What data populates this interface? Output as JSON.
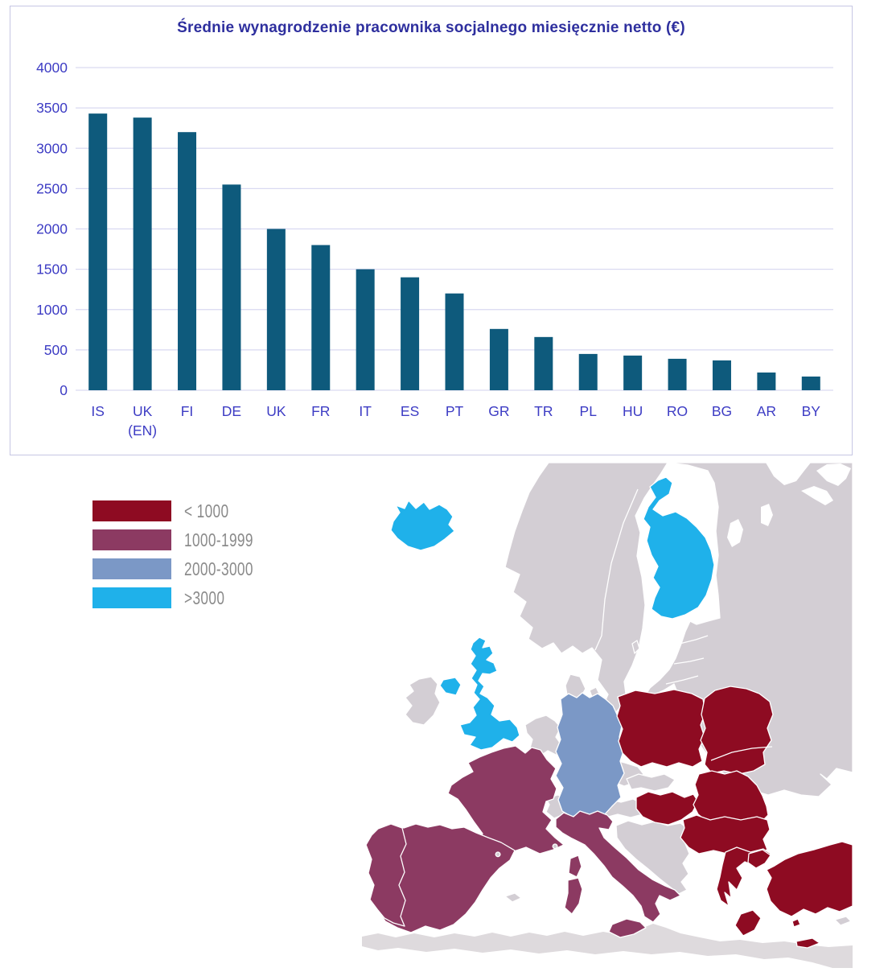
{
  "chart_data": {
    "type": "bar",
    "title": "Średnie wynagrodzenie pracownika socjalnego miesięcznie netto (€)",
    "categories": [
      "IS",
      "UK (EN)",
      "FI",
      "DE",
      "UK",
      "FR",
      "IT",
      "ES",
      "PT",
      "GR",
      "TR",
      "PL",
      "HU",
      "RO",
      "BG",
      "AR",
      "BY"
    ],
    "values": [
      3430,
      3380,
      3200,
      2550,
      2000,
      1800,
      1500,
      1400,
      1200,
      760,
      660,
      450,
      430,
      390,
      370,
      220,
      170
    ],
    "xlabel": "",
    "ylabel": "",
    "ylim": [
      0,
      4000
    ],
    "yticks": [
      0,
      500,
      1000,
      1500,
      2000,
      2500,
      3000,
      3500,
      4000
    ],
    "grid": true,
    "legend_position": "none",
    "bar_color": "#0e5a7c",
    "axis_text_color": "#3d3cc4",
    "title_color": "#2e2f9e",
    "gridline_color": "#d9d9f1",
    "panel_border_color": "#c6c6e4"
  },
  "legend": {
    "text_color": "#8a8a8a",
    "items": [
      {
        "label": "< 1000",
        "color": "#8e0b22",
        "category": "lt1000"
      },
      {
        "label": "1000-1999",
        "color": "#8c3a62",
        "category": "1000-1999"
      },
      {
        "label": "2000-3000",
        "color": "#7b98c6",
        "category": "2000-3000"
      },
      {
        "label": ">3000",
        "color": "#1fb1ea",
        "category": "gt3000"
      }
    ]
  },
  "map": {
    "sea_color": "#ffffff",
    "nodata_color": "#d3ced4",
    "africa_color": "#dedadd",
    "border_color": "#ffffff",
    "countries": [
      {
        "id": "eastern-europe-russia",
        "category": "none"
      },
      {
        "id": "white-sea",
        "category": "water"
      },
      {
        "id": "lake-ladoga",
        "category": "water"
      },
      {
        "id": "lake-onega",
        "category": "water"
      },
      {
        "id": "scandinavia",
        "category": "none"
      },
      {
        "id": "gotland",
        "category": "none"
      },
      {
        "id": "denmark",
        "category": "none"
      },
      {
        "id": "ireland",
        "category": "none"
      },
      {
        "id": "benelux",
        "category": "none"
      },
      {
        "id": "czechia",
        "category": "none"
      },
      {
        "id": "slovakia",
        "category": "none"
      },
      {
        "id": "switzerland",
        "category": "none"
      },
      {
        "id": "austria",
        "category": "none"
      },
      {
        "id": "balkans",
        "category": "none"
      },
      {
        "id": "africa",
        "category": "africa"
      },
      {
        "id": "finland",
        "category": "gt3000"
      },
      {
        "id": "iceland",
        "category": "gt3000"
      },
      {
        "id": "united-kingdom",
        "category": "gt3000"
      },
      {
        "id": "germany",
        "category": "2000-3000"
      },
      {
        "id": "france",
        "category": "1000-1999"
      },
      {
        "id": "corsica",
        "category": "1000-1999"
      },
      {
        "id": "spain",
        "category": "1000-1999"
      },
      {
        "id": "portugal",
        "category": "1000-1999"
      },
      {
        "id": "italy",
        "category": "1000-1999"
      },
      {
        "id": "poland",
        "category": "lt1000"
      },
      {
        "id": "belarus",
        "category": "lt1000"
      },
      {
        "id": "hungary",
        "category": "lt1000"
      },
      {
        "id": "romania",
        "category": "lt1000"
      },
      {
        "id": "bulgaria",
        "category": "lt1000"
      },
      {
        "id": "greece",
        "category": "lt1000"
      },
      {
        "id": "turkey",
        "category": "lt1000"
      },
      {
        "id": "balearic-islands",
        "category": "none"
      },
      {
        "id": "cyprus",
        "category": "none"
      },
      {
        "id": "monaco",
        "category": "none"
      },
      {
        "id": "andorra",
        "category": "none"
      }
    ]
  }
}
